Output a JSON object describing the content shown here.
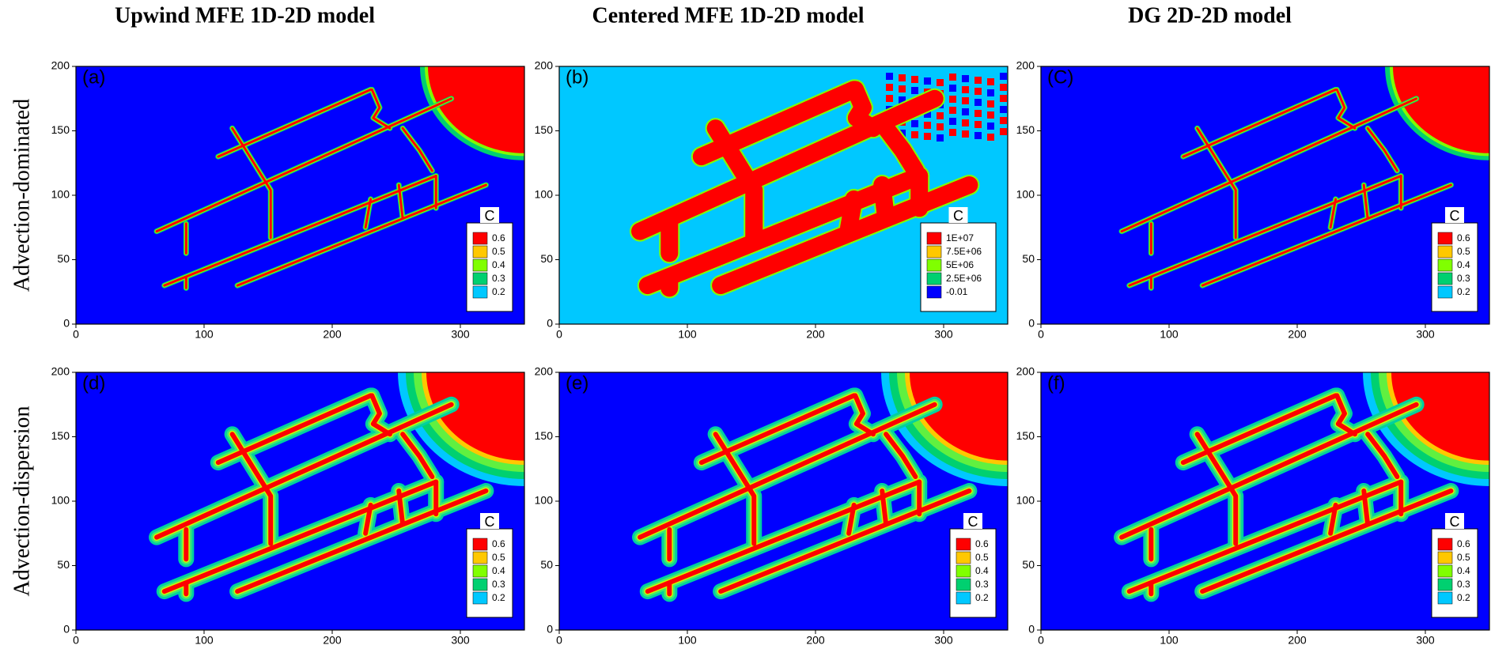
{
  "column_titles": [
    "Upwind MFE 1D-2D model",
    "Centered MFE 1D-2D model",
    "DG 2D-2D model"
  ],
  "row_labels": [
    "Advection-dominated",
    "Advection-dispersion"
  ],
  "panels": [
    {
      "label": "(a)",
      "xlim": [
        0,
        350
      ],
      "ylim": [
        0,
        200
      ],
      "xticks": [
        0,
        100,
        200,
        300
      ],
      "yticks": [
        0,
        50,
        100,
        150,
        200
      ],
      "background": "#0000ff",
      "legend": {
        "title": "C",
        "levels": [
          {
            "value": 0.6,
            "color": "#ff0000"
          },
          {
            "value": 0.5,
            "color": "#ffc800"
          },
          {
            "value": 0.4,
            "color": "#80ff00"
          },
          {
            "value": 0.3,
            "color": "#00d070"
          },
          {
            "value": 0.2,
            "color": "#00c8ff"
          }
        ]
      }
    },
    {
      "label": "(b)",
      "xlim": [
        0,
        350
      ],
      "ylim": [
        0,
        200
      ],
      "xticks": [
        0,
        100,
        200,
        300
      ],
      "yticks": [
        0,
        50,
        100,
        150,
        200
      ],
      "background": "#00c8ff",
      "legend": {
        "title": "C",
        "levels": [
          {
            "value": 10000000,
            "label": "1E+07",
            "color": "#ff0000"
          },
          {
            "value": 7500000,
            "label": "7.5E+06",
            "color": "#ffc800"
          },
          {
            "value": 5000000,
            "label": "5E+06",
            "color": "#80ff00"
          },
          {
            "value": 2500000,
            "label": "2.5E+06",
            "color": "#00d070"
          },
          {
            "value": -0.01,
            "color": "#0000ff"
          }
        ]
      }
    },
    {
      "label": "(C)",
      "xlim": [
        0,
        350
      ],
      "ylim": [
        0,
        200
      ],
      "xticks": [
        0,
        100,
        200,
        300
      ],
      "yticks": [
        0,
        50,
        100,
        150,
        200
      ],
      "background": "#0000ff",
      "legend": {
        "title": "C",
        "levels": [
          {
            "value": 0.6,
            "color": "#ff0000"
          },
          {
            "value": 0.5,
            "color": "#ffc800"
          },
          {
            "value": 0.4,
            "color": "#80ff00"
          },
          {
            "value": 0.3,
            "color": "#00d070"
          },
          {
            "value": 0.2,
            "color": "#00c8ff"
          }
        ]
      }
    },
    {
      "label": "(d)",
      "xlim": [
        0,
        350
      ],
      "ylim": [
        0,
        200
      ],
      "xticks": [
        0,
        100,
        200,
        300
      ],
      "yticks": [
        0,
        50,
        100,
        150,
        200
      ],
      "background": "#0000ff",
      "legend": {
        "title": "C",
        "levels": [
          {
            "value": 0.6,
            "color": "#ff0000"
          },
          {
            "value": 0.5,
            "color": "#ffc800"
          },
          {
            "value": 0.4,
            "color": "#80ff00"
          },
          {
            "value": 0.3,
            "color": "#00d070"
          },
          {
            "value": 0.2,
            "color": "#00c8ff"
          }
        ]
      }
    },
    {
      "label": "(e)",
      "xlim": [
        0,
        350
      ],
      "ylim": [
        0,
        200
      ],
      "xticks": [
        0,
        100,
        200,
        300
      ],
      "yticks": [
        0,
        50,
        100,
        150,
        200
      ],
      "background": "#0000ff",
      "legend": {
        "title": "C",
        "levels": [
          {
            "value": 0.6,
            "color": "#ff0000"
          },
          {
            "value": 0.5,
            "color": "#ffc800"
          },
          {
            "value": 0.4,
            "color": "#80ff00"
          },
          {
            "value": 0.3,
            "color": "#00d070"
          },
          {
            "value": 0.2,
            "color": "#00c8ff"
          }
        ]
      }
    },
    {
      "label": "(f)",
      "xlim": [
        0,
        350
      ],
      "ylim": [
        0,
        200
      ],
      "xticks": [
        0,
        100,
        200,
        300
      ],
      "yticks": [
        0,
        50,
        100,
        150,
        200
      ],
      "background": "#0000ff",
      "legend": {
        "title": "C",
        "levels": [
          {
            "value": 0.6,
            "color": "#ff0000"
          },
          {
            "value": 0.5,
            "color": "#ffc800"
          },
          {
            "value": 0.4,
            "color": "#80ff00"
          },
          {
            "value": 0.3,
            "color": "#00d070"
          },
          {
            "value": 0.2,
            "color": "#00c8ff"
          }
        ]
      }
    }
  ]
}
